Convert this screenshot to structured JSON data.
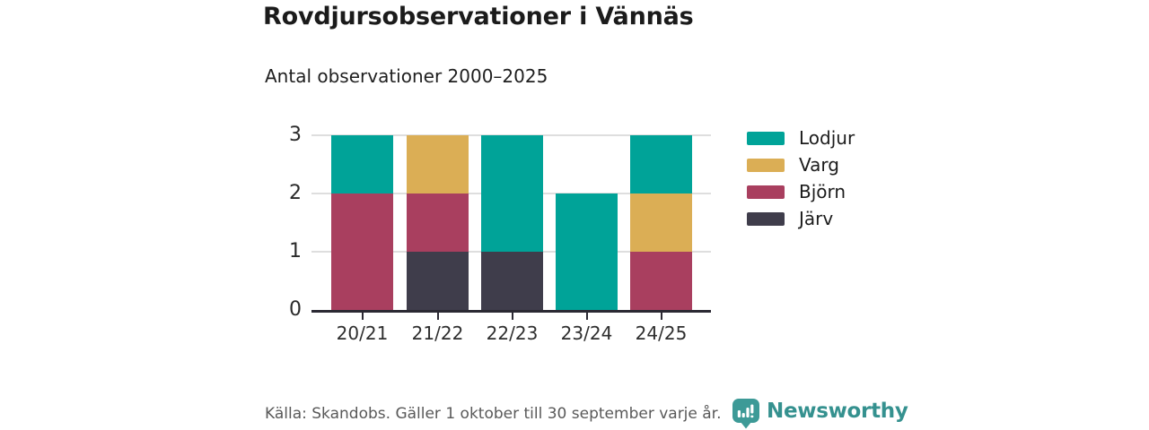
{
  "page": {
    "title": "Rovdjursobservationer i Vännäs",
    "subtitle": "Antal observationer 2000–2025",
    "footer": {
      "source": "Källa: Skandobs. Gäller 1 oktober till 30 september varje år.",
      "brand": "Newsworthy"
    }
  },
  "colors": {
    "lodjur_teal": "#00a398",
    "varg_gold": "#dbae55",
    "bjorn_maroon": "#a93f5f",
    "jarv_dark": "#3f3d4b",
    "axis": "#2b2933",
    "grid": "#dedede",
    "brand_teal": "#3d9a97",
    "brand_text_teal": "#35918f"
  },
  "chart_data": {
    "type": "bar",
    "stacked": true,
    "title": "Rovdjursobservationer i Vännäs",
    "subtitle": "Antal observationer 2000–2025",
    "categories": [
      "20/21",
      "21/22",
      "22/23",
      "23/24",
      "24/25"
    ],
    "series": [
      {
        "name": "Lodjur",
        "color": "#00a398",
        "values": [
          1,
          0,
          2,
          2,
          1
        ]
      },
      {
        "name": "Varg",
        "color": "#dbae55",
        "values": [
          0,
          1,
          0,
          0,
          1
        ]
      },
      {
        "name": "Björn",
        "color": "#a93f5f",
        "values": [
          2,
          1,
          0,
          0,
          1
        ]
      },
      {
        "name": "Järv",
        "color": "#3f3d4b",
        "values": [
          0,
          1,
          1,
          0,
          0
        ]
      }
    ],
    "stack_order_bottom_to_top": [
      "Järv",
      "Björn",
      "Varg",
      "Lodjur"
    ],
    "totals": [
      3,
      3,
      3,
      2,
      3
    ],
    "xlabel": "",
    "ylabel": "",
    "ylim": [
      0,
      3
    ],
    "yticks": [
      0,
      1,
      2,
      3
    ],
    "grid": true,
    "legend_position": "right"
  }
}
